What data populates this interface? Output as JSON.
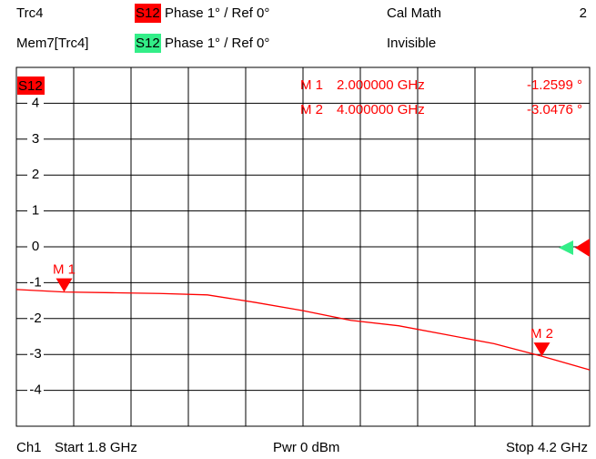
{
  "chart_data": {
    "type": "line",
    "header": {
      "row1": {
        "trace": "Trc4",
        "param": "S12",
        "format": "Phase 1° / Ref 0°",
        "info": "Cal Math",
        "channel": "2"
      },
      "row2": {
        "trace": "Mem7[Trc4]",
        "param": "S12",
        "format": "Phase 1° / Ref 0°",
        "info": "Invisible"
      }
    },
    "plot_label": "S12",
    "x": [
      1.8,
      2.0,
      2.2,
      2.4,
      2.6,
      2.8,
      3.0,
      3.2,
      3.4,
      3.6,
      3.8,
      4.0,
      4.2
    ],
    "series": [
      {
        "color": "#ff0000",
        "values": [
          -1.19,
          -1.26,
          -1.28,
          -1.3,
          -1.34,
          -1.55,
          -1.78,
          -2.05,
          -2.2,
          -2.45,
          -2.7,
          -3.05,
          -3.43
        ]
      }
    ],
    "xlim": [
      1.8,
      4.2
    ],
    "ylim": [
      -5,
      5
    ],
    "yticks": [
      4,
      3,
      2,
      1,
      0,
      -1,
      -2,
      -3,
      -4
    ],
    "grid": true,
    "markers": [
      {
        "label": "M 1",
        "x": 2.0,
        "x_label": "2.000000 GHz",
        "value": -1.2599,
        "value_label": "-1.2599 °"
      },
      {
        "label": "M 2",
        "x": 4.0,
        "x_label": "4.000000 GHz",
        "value": -3.0476,
        "value_label": "-3.0476 °"
      }
    ],
    "footer": {
      "channel": "Ch1",
      "start": "Start 1.8 GHz",
      "power": "Pwr 0 dBm",
      "stop": "Stop 4.2 GHz"
    }
  }
}
